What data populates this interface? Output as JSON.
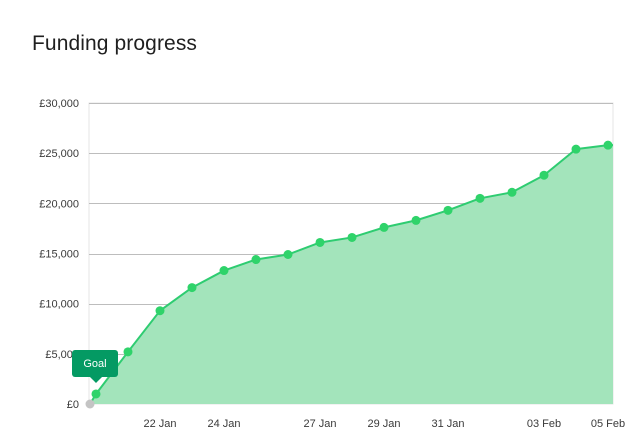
{
  "page_title": "Funding progress",
  "colors": {
    "line": "#2ecc71",
    "marker": "#2fd36a",
    "fill": "#a3e4bb",
    "grid": "#bdbdbd",
    "goal_badge": "#049a63",
    "start_marker": "#c4c4c4"
  },
  "chart_data": {
    "type": "area",
    "title": "Funding progress",
    "xlabel": "",
    "ylabel": "",
    "ylim": [
      0,
      30000
    ],
    "yticks": [
      0,
      5000,
      10000,
      15000,
      20000,
      25000,
      30000
    ],
    "ytick_labels": [
      "£0",
      "£5,000",
      "£10,000",
      "£15,000",
      "£20,000",
      "£25,000",
      "£30,000"
    ],
    "xticks": [
      "2000-01-22",
      "2000-01-24",
      "2000-01-27",
      "2000-01-29",
      "2000-01-31",
      "2000-02-03",
      "2000-02-05"
    ],
    "xtick_labels": [
      "22 Jan",
      "24 Jan",
      "27 Jan",
      "29 Jan",
      "31 Jan",
      "03 Feb",
      "05 Feb"
    ],
    "xlim": [
      "2000-01-20",
      "2000-02-05"
    ],
    "grid": true,
    "legend": "none",
    "series": [
      {
        "x": [
          "2000-01-20",
          "2000-01-21",
          "2000-01-22",
          "2000-01-23",
          "2000-01-24",
          "2000-01-25",
          "2000-01-26",
          "2000-01-27",
          "2000-01-28",
          "2000-01-29",
          "2000-01-30",
          "2000-01-31",
          "2000-02-01",
          "2000-02-02",
          "2000-02-03",
          "2000-02-04",
          "2000-02-05"
        ],
        "y": [
          1000,
          5200,
          9300,
          11600,
          13300,
          14400,
          14900,
          16100,
          16600,
          17600,
          18300,
          19300,
          20500,
          21100,
          22800,
          25400,
          25800
        ]
      }
    ],
    "start_point": {
      "x": "2000-01-20",
      "y": 0
    },
    "annotations": [
      {
        "label": "Goal",
        "x": "2000-01-20",
        "y": 1000
      }
    ]
  }
}
